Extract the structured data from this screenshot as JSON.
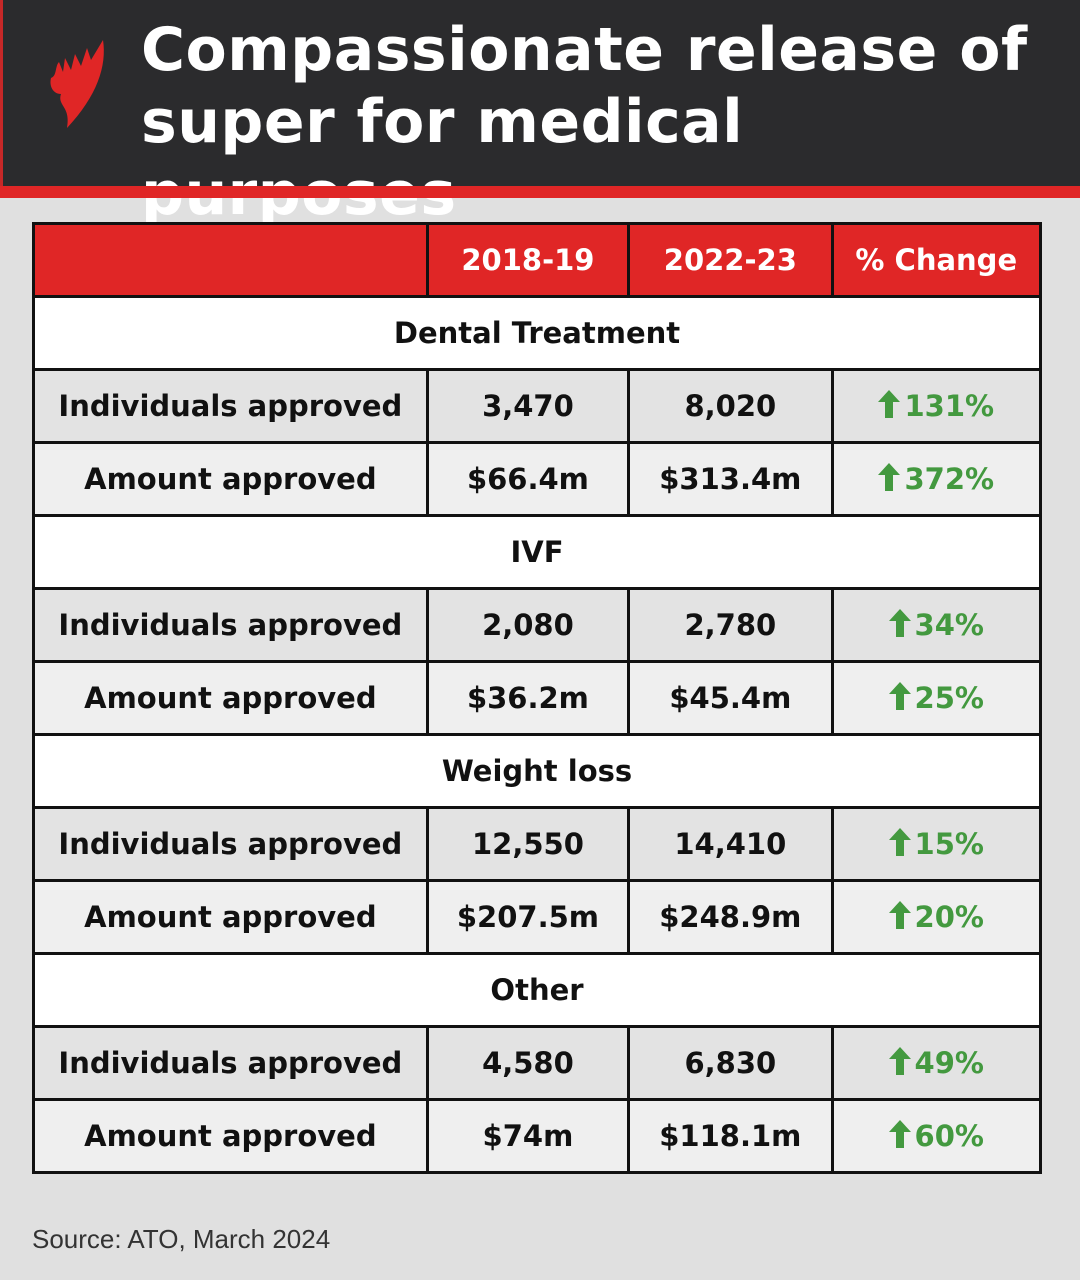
{
  "header": {
    "title_line1": "Compassionate release of",
    "title_line2": "super for medical purposes",
    "logo": "SBS"
  },
  "colors": {
    "header_bg": "#2b2b2d",
    "accent_red": "#e02626",
    "increase_green": "#43993f"
  },
  "table": {
    "columns": [
      "",
      "2018-19",
      "2022-23",
      "% Change"
    ],
    "sections": [
      {
        "name": "Dental Treatment",
        "rows": [
          {
            "label": "Individuals approved",
            "v2018": "3,470",
            "v2022": "8,020",
            "change": "131%"
          },
          {
            "label": "Amount approved",
            "v2018": "$66.4m",
            "v2022": "$313.4m",
            "change": "372%"
          }
        ]
      },
      {
        "name": "IVF",
        "rows": [
          {
            "label": "Individuals approved",
            "v2018": "2,080",
            "v2022": "2,780",
            "change": "34%"
          },
          {
            "label": "Amount approved",
            "v2018": "$36.2m",
            "v2022": "$45.4m",
            "change": "25%"
          }
        ]
      },
      {
        "name": "Weight loss",
        "rows": [
          {
            "label": "Individuals approved",
            "v2018": "12,550",
            "v2022": "14,410",
            "change": "15%"
          },
          {
            "label": "Amount approved",
            "v2018": "$207.5m",
            "v2022": "$248.9m",
            "change": "20%"
          }
        ]
      },
      {
        "name": "Other",
        "rows": [
          {
            "label": "Individuals approved",
            "v2018": "4,580",
            "v2022": "6,830",
            "change": "49%"
          },
          {
            "label": "Amount approved",
            "v2018": "$74m",
            "v2022": "$118.1m",
            "change": "60%"
          }
        ]
      }
    ],
    "change_icon": "arrow-up-icon"
  },
  "source": "Source: ATO, March 2024",
  "chart_data": {
    "type": "table",
    "title": "Compassionate release of super for medical purposes",
    "columns": [
      "",
      "2018-19",
      "2022-23",
      "% Change"
    ],
    "rows": [
      [
        "Dental Treatment",
        "Individuals approved",
        "3,470",
        "8,020",
        "131%"
      ],
      [
        "Dental Treatment",
        "Amount approved",
        "$66.4m",
        "$313.4m",
        "372%"
      ],
      [
        "IVF",
        "Individuals approved",
        "2,080",
        "2,780",
        "34%"
      ],
      [
        "IVF",
        "Amount approved",
        "$36.2m",
        "$45.4m",
        "25%"
      ],
      [
        "Weight loss",
        "Individuals approved",
        "12,550",
        "14,410",
        "15%"
      ],
      [
        "Weight loss",
        "Amount approved",
        "$207.5m",
        "$248.9m",
        "20%"
      ],
      [
        "Other",
        "Individuals approved",
        "4,580",
        "6,830",
        "49%"
      ],
      [
        "Other",
        "Amount approved",
        "$74m",
        "$118.1m",
        "60%"
      ]
    ]
  }
}
